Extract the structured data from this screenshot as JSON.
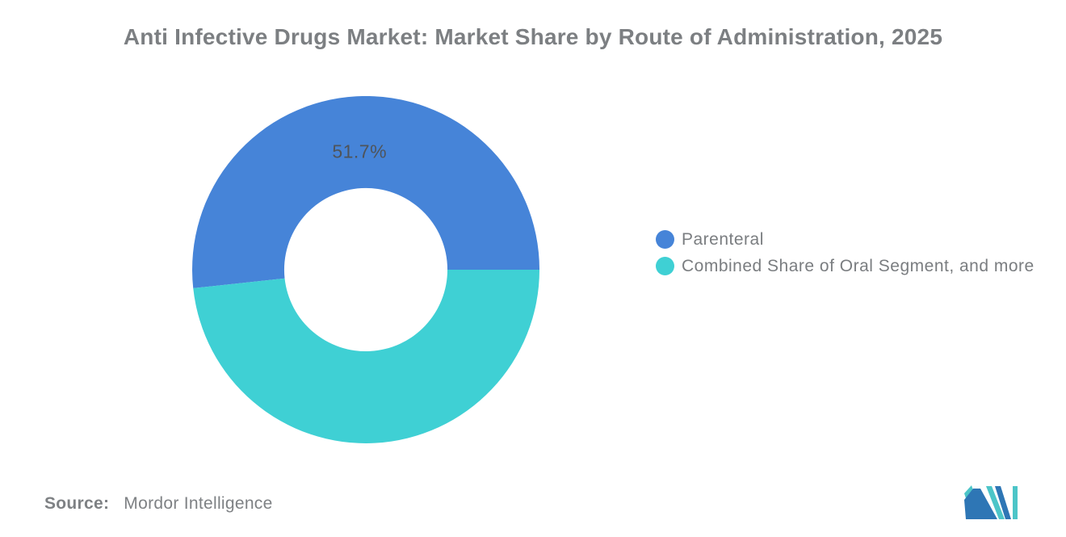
{
  "title": "Anti Infective Drugs Market: Market Share by Route of Administration, 2025",
  "chart_data": {
    "type": "pie",
    "subtype": "donut",
    "title": "Anti Infective Drugs Market: Market Share by Route of Administration, 2025",
    "inner_radius_ratio": 0.47,
    "start_angle_deg": 0,
    "direction": "counterclockwise",
    "legend_position": "right",
    "grid": false,
    "slices": [
      {
        "label": "Parenteral",
        "value": 51.7,
        "color": "#4684d8",
        "data_label": "51.7%"
      },
      {
        "label": "Combined Share of Oral Segment, and more",
        "value": 48.3,
        "color": "#3FD0D4",
        "data_label": ""
      }
    ],
    "data_label_color": "#4f545a"
  },
  "source": {
    "label": "Source:",
    "value": "Mordor Intelligence"
  },
  "logo": {
    "icon": "mordor-intelligence-m-logo",
    "colors": {
      "navy": "#2e76b5",
      "teal": "#4cc5c8"
    }
  }
}
